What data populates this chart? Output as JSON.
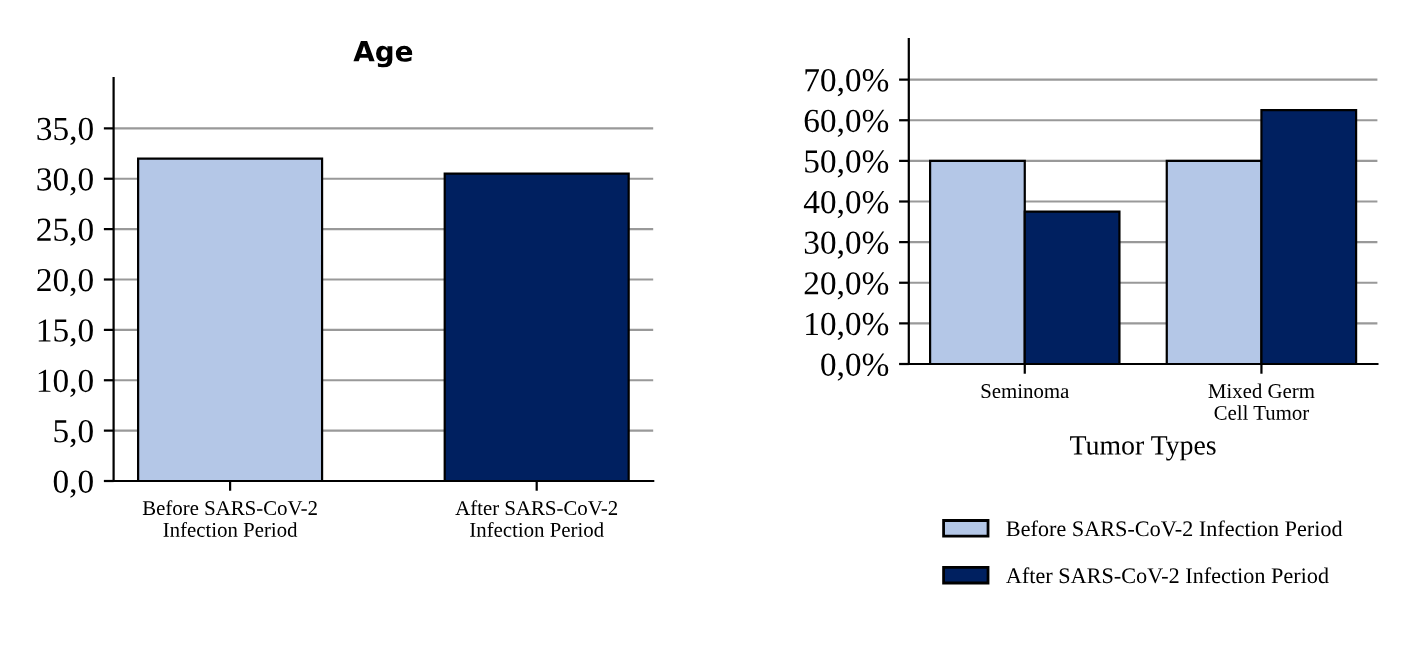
{
  "chart_data": [
    {
      "type": "bar",
      "title": "Age",
      "categories": [
        "Before SARS-CoV-2\nInfection Period",
        "After SARS-CoV-2\nInfection Period"
      ],
      "colors": [
        "#b4c7e7",
        "#002060"
      ],
      "values": [
        32.0,
        30.5
      ],
      "ylim": [
        0,
        40
      ],
      "yticks": [
        {
          "value": 0,
          "label": "0,0"
        },
        {
          "value": 5,
          "label": "5,0"
        },
        {
          "value": 10,
          "label": "10,0"
        },
        {
          "value": 15,
          "label": "15,0"
        },
        {
          "value": 20,
          "label": "20,0"
        },
        {
          "value": 25,
          "label": "25,0"
        },
        {
          "value": 30,
          "label": "30,0"
        },
        {
          "value": 35,
          "label": "35,0"
        }
      ],
      "grid": "y",
      "legend": false
    },
    {
      "type": "bar",
      "xlabel": "Tumor Types",
      "categories": [
        "Seminoma",
        "Mixed Germ\nCell Tumor"
      ],
      "ylim": [
        0,
        80
      ],
      "series": [
        {
          "name": "Before SARS-CoV-2 Infection Period",
          "color": "#b4c7e7",
          "values": [
            50.0,
            50.0
          ]
        },
        {
          "name": "After SARS-CoV-2 Infection Period",
          "color": "#002060",
          "values": [
            37.5,
            62.5
          ]
        }
      ],
      "yticks": [
        {
          "value": 0,
          "label": "0,0%"
        },
        {
          "value": 10,
          "label": "10,0%"
        },
        {
          "value": 20,
          "label": "20,0%"
        },
        {
          "value": 30,
          "label": "30,0%"
        },
        {
          "value": 40,
          "label": "40,0%"
        },
        {
          "value": 50,
          "label": "50,0%"
        },
        {
          "value": 60,
          "label": "60,0%"
        },
        {
          "value": 70,
          "label": "70,0%"
        }
      ],
      "grid": "y",
      "legend": "bottom"
    }
  ]
}
